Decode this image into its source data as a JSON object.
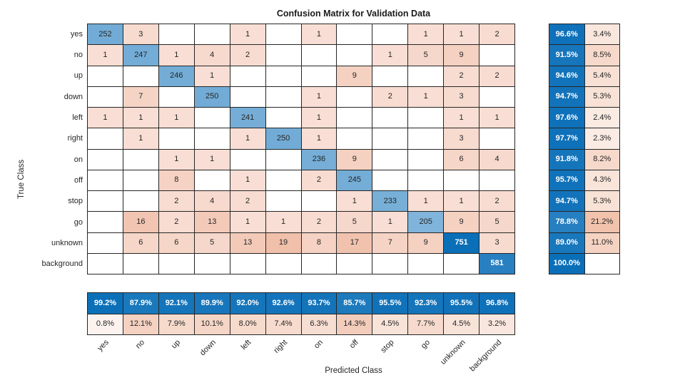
{
  "chart_data": {
    "type": "heatmap",
    "title": "Confusion Matrix for Validation Data",
    "xlabel": "Predicted Class",
    "ylabel": "True Class",
    "classes": [
      "yes",
      "no",
      "up",
      "down",
      "left",
      "right",
      "on",
      "off",
      "stop",
      "go",
      "unknown",
      "background"
    ],
    "matrix": [
      [
        252,
        3,
        null,
        null,
        1,
        null,
        1,
        null,
        null,
        1,
        1,
        2
      ],
      [
        1,
        247,
        1,
        4,
        2,
        null,
        null,
        null,
        1,
        5,
        9,
        null
      ],
      [
        null,
        null,
        246,
        1,
        null,
        null,
        null,
        9,
        null,
        null,
        2,
        2
      ],
      [
        null,
        7,
        null,
        250,
        null,
        null,
        1,
        null,
        2,
        1,
        3,
        null
      ],
      [
        1,
        1,
        1,
        null,
        241,
        null,
        1,
        null,
        null,
        null,
        1,
        1
      ],
      [
        null,
        1,
        null,
        null,
        1,
        250,
        1,
        null,
        null,
        null,
        3,
        null
      ],
      [
        null,
        null,
        1,
        1,
        null,
        null,
        236,
        9,
        null,
        null,
        6,
        4
      ],
      [
        null,
        null,
        8,
        null,
        1,
        null,
        2,
        245,
        null,
        null,
        null,
        null
      ],
      [
        null,
        null,
        2,
        4,
        2,
        null,
        null,
        1,
        233,
        1,
        1,
        2
      ],
      [
        null,
        16,
        2,
        13,
        1,
        1,
        2,
        5,
        1,
        205,
        9,
        5
      ],
      [
        null,
        6,
        6,
        5,
        13,
        19,
        8,
        17,
        7,
        9,
        751,
        3
      ],
      [
        null,
        null,
        null,
        null,
        null,
        null,
        null,
        null,
        null,
        null,
        null,
        581
      ]
    ],
    "row_summary": [
      [
        96.6,
        3.4
      ],
      [
        91.5,
        8.5
      ],
      [
        94.6,
        5.4
      ],
      [
        94.7,
        5.3
      ],
      [
        97.6,
        2.4
      ],
      [
        97.7,
        2.3
      ],
      [
        91.8,
        8.2
      ],
      [
        95.7,
        4.3
      ],
      [
        94.7,
        5.3
      ],
      [
        78.8,
        21.2
      ],
      [
        89.0,
        11.0
      ],
      [
        100.0,
        null
      ]
    ],
    "col_summary": [
      [
        99.2,
        0.8
      ],
      [
        87.9,
        12.1
      ],
      [
        92.1,
        7.9
      ],
      [
        89.9,
        10.1
      ],
      [
        92.0,
        8.0
      ],
      [
        92.6,
        7.4
      ],
      [
        93.7,
        6.3
      ],
      [
        85.7,
        14.3
      ],
      [
        95.5,
        4.5
      ],
      [
        92.3,
        7.7
      ],
      [
        95.5,
        4.5
      ],
      [
        96.8,
        3.2
      ]
    ]
  },
  "colors": {
    "diagonal_blue_max": "#0b6fb8",
    "offdiag_salmon_low": "#f8ded4",
    "offdiag_salmon_high": "#f0c0aa",
    "percent_salmon_max": "#e07b4a",
    "grid_line": "#262626",
    "text_dark": "#262626",
    "text_light": "#ffffff",
    "background": "#ffffff"
  }
}
